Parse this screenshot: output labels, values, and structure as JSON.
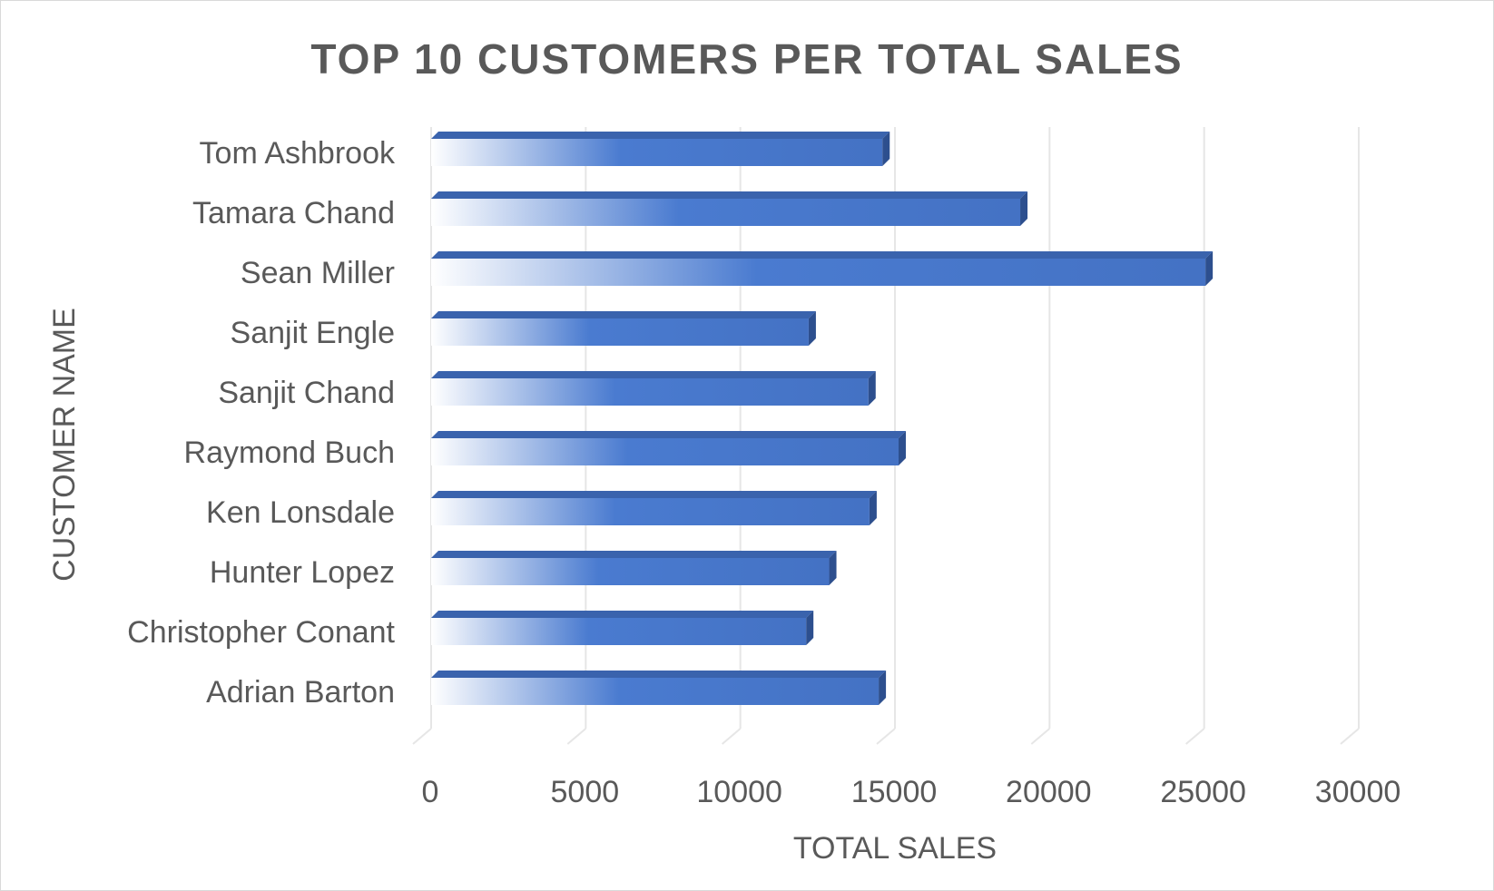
{
  "chart_data": {
    "type": "bar",
    "orientation": "horizontal",
    "title": "TOP 10 CUSTOMERS PER TOTAL SALES",
    "xlabel": "TOTAL SALES",
    "ylabel": "CUSTOMER NAME",
    "xlim": [
      0,
      30000
    ],
    "xticks": [
      "0",
      "5000",
      "10000",
      "15000",
      "20000",
      "25000",
      "30000"
    ],
    "grid": true,
    "legend": "none",
    "bar_color": "#4472c4",
    "categories": [
      "Tom Ashbrook",
      "Tamara Chand",
      "Sean Miller",
      "Sanjit Engle",
      "Sanjit Chand",
      "Raymond Buch",
      "Ken Lonsdale",
      "Hunter Lopez",
      "Christopher Conant",
      "Adrian Barton"
    ],
    "values": [
      14596,
      19052,
      25043,
      12209,
      14142,
      15117,
      14175,
      12873,
      12129,
      14474
    ]
  }
}
